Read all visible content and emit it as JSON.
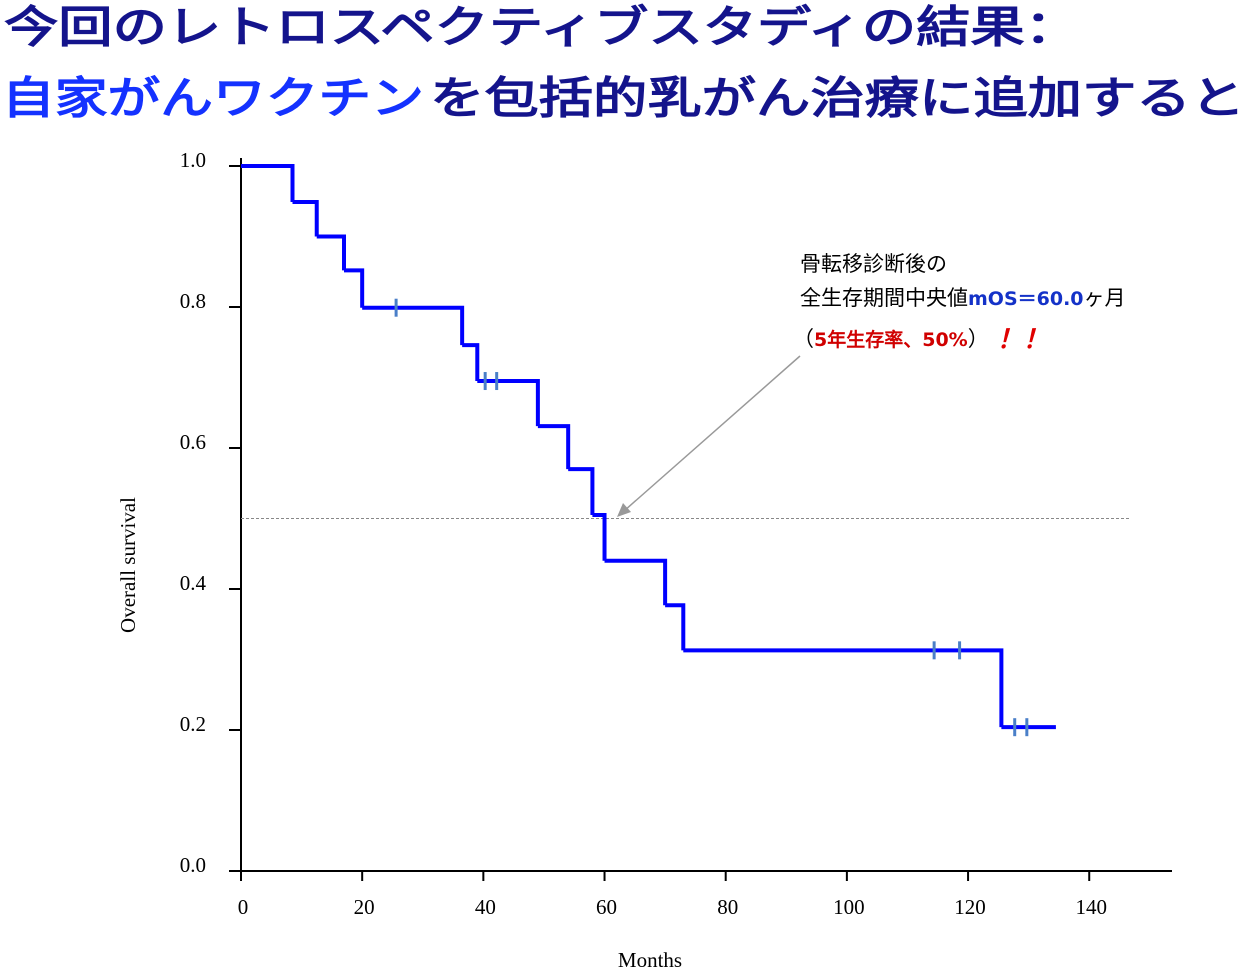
{
  "chart_data": {
    "type": "kaplan-meier",
    "title_line1": "今回のレトロスペクティブスタディの結果：",
    "title_line2_highlight": "自家がんワクチン",
    "title_line2_rest": "を包括的乳がん治療に追加すると",
    "xlabel": "Months",
    "ylabel": "Overall survival",
    "xlim": [
      0,
      153
    ],
    "ylim": [
      0,
      1.0
    ],
    "xticks": [
      0,
      20,
      40,
      60,
      80,
      100,
      120,
      140
    ],
    "yticks": [
      {
        "value": 0,
        "label": "0.0"
      },
      0.2,
      0.4,
      0.6,
      0.8,
      {
        "value": 1.0,
        "label": "1.0"
      }
    ],
    "series": [
      {
        "name": "Overall survival",
        "color": "#0000ff",
        "x": [
          0,
          8.5,
          12.5,
          17,
          20,
          36.5,
          39,
          49,
          54,
          58,
          60,
          70,
          73,
          125.5,
          134.5
        ],
        "values": [
          1.0,
          0.949,
          0.9,
          0.852,
          0.799,
          0.746,
          0.695,
          0.631,
          0.57,
          0.505,
          0.44,
          0.377,
          0.313,
          0.204,
          0.204
        ]
      }
    ],
    "censored": {
      "color": "#4a7fc8",
      "x": [
        25.6,
        40.3,
        42.2,
        114.4,
        118.6,
        127.7,
        129.7
      ],
      "values": [
        0.799,
        0.695,
        0.695,
        0.313,
        0.313,
        0.204,
        0.204
      ]
    },
    "reference_line": {
      "y": 0.5,
      "x_end": 146.7
    },
    "annotation": {
      "line1": "骨転移診断後の",
      "line2_text": "全生存期間中央値",
      "line2_highlight": "mOS＝60.0",
      "line2_unit": "ヶ月",
      "line3_open": "（",
      "line3_highlight": "5年生存率、50%",
      "line3_close": "）",
      "line3_exclaim": "！！"
    }
  }
}
